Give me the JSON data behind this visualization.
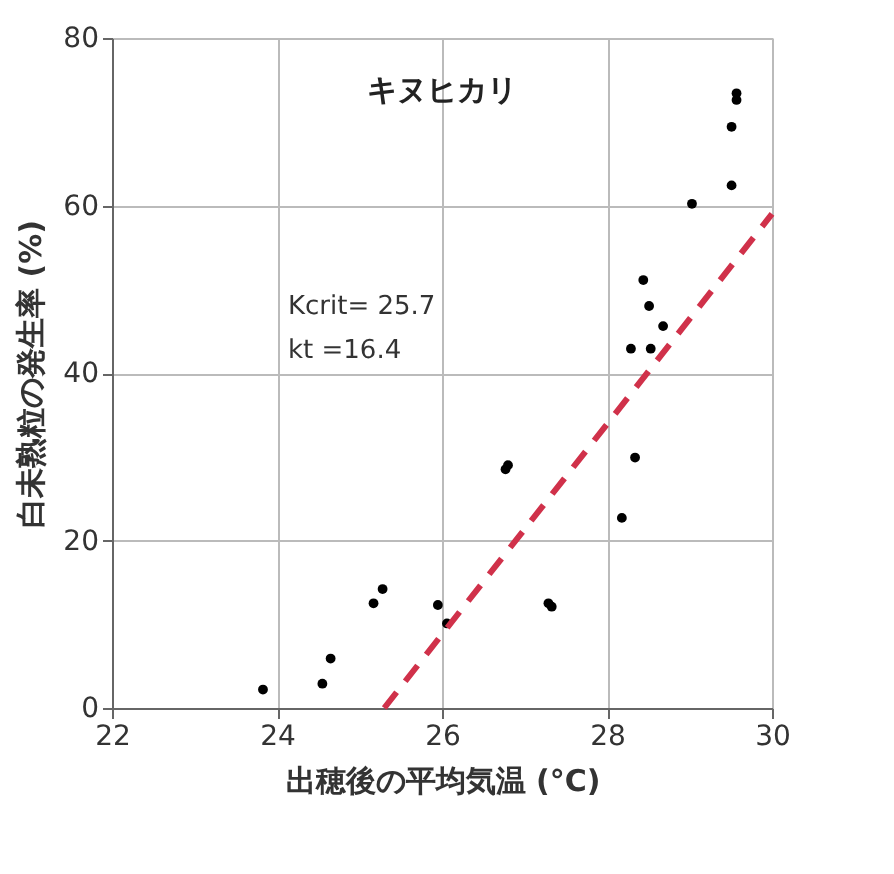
{
  "chart_data": {
    "type": "scatter",
    "title": "キヌヒカリ",
    "xlabel": "出穂後の平均気温 (°C)",
    "ylabel": "白未熟粒の発生率 (%)",
    "annotations": [
      "Kcrit= 25.7",
      "kt =16.4"
    ],
    "x": [
      23.83,
      24.55,
      24.65,
      25.17,
      25.28,
      25.95,
      26.06,
      26.77,
      26.8,
      27.29,
      27.33,
      28.18,
      28.34,
      28.29,
      28.44,
      28.51,
      28.53,
      28.68,
      29.03,
      29.51,
      29.51,
      29.57,
      29.57
    ],
    "series": [
      {
        "color": "#000000",
        "marker": "circle",
        "values": [
          2.2,
          2.9,
          5.9,
          12.5,
          14.2,
          12.3,
          10.1,
          28.5,
          29,
          12.5,
          12.1,
          22.7,
          29.9,
          42.9,
          51.1,
          48,
          42.9,
          45.6,
          60.2,
          62.4,
          69.4,
          73.4,
          72.6
        ]
      },
      {
        "type": "line",
        "color": "#d0314a",
        "line_style": "dashed",
        "x": [
          25.3,
          30
        ],
        "values": [
          0,
          59
        ]
      }
    ],
    "xlim": [
      22,
      30
    ],
    "xticks": [
      22,
      24,
      26,
      28,
      30
    ],
    "ylim": [
      0,
      80
    ],
    "yticks": [
      0,
      20,
      40,
      60,
      80
    ],
    "grid": true
  }
}
